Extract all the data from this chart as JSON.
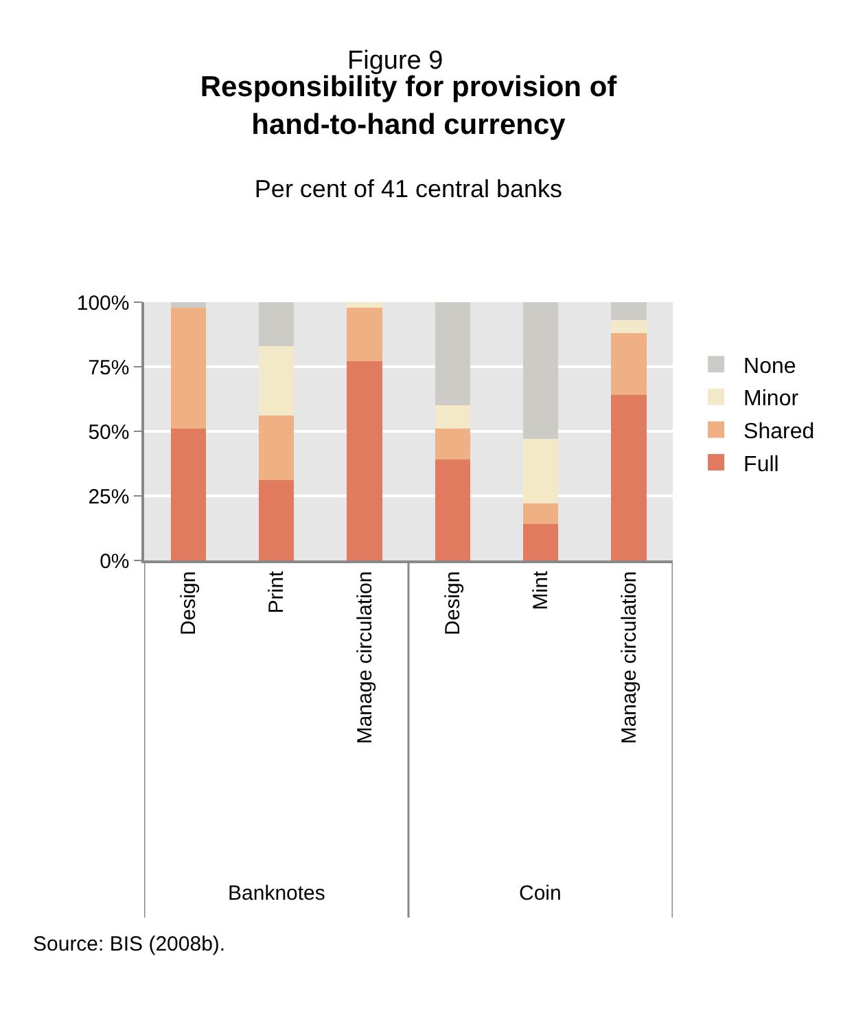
{
  "chart_data": {
    "type": "bar",
    "stacked": true,
    "title": "Responsibility for provision of hand-to-hand currency",
    "subtitle": "Per cent of 41 central banks",
    "categories": [
      "Design",
      "Print",
      "Manage circulation",
      "Design",
      "Mint",
      "Manage circulation"
    ],
    "series": [
      {
        "name": "Full",
        "color": "#e07b5f",
        "values": [
          51,
          31,
          77,
          39,
          14,
          64
        ]
      },
      {
        "name": "Shared",
        "color": "#efb083",
        "values": [
          47,
          25,
          21,
          12,
          8,
          24
        ]
      },
      {
        "name": "Minor",
        "color": "#f3e8c8",
        "values": [
          0,
          27,
          2,
          9,
          25,
          5
        ]
      },
      {
        "name": "None",
        "color": "#cccbc6",
        "values": [
          2,
          17,
          0,
          40,
          53,
          7
        ]
      }
    ],
    "ylim": [
      0,
      100
    ],
    "yticks": [
      {
        "value": 0,
        "label": "0%"
      },
      {
        "value": 25,
        "label": "25%"
      },
      {
        "value": 50,
        "label": "50%"
      },
      {
        "value": 75,
        "label": "75%"
      },
      {
        "value": 100,
        "label": "100%"
      }
    ],
    "grid": "y",
    "legend": "right",
    "annotations": [
      "Figure 9",
      "Banknotes",
      "Coin",
      "Source: BIS (2008b)."
    ]
  }
}
